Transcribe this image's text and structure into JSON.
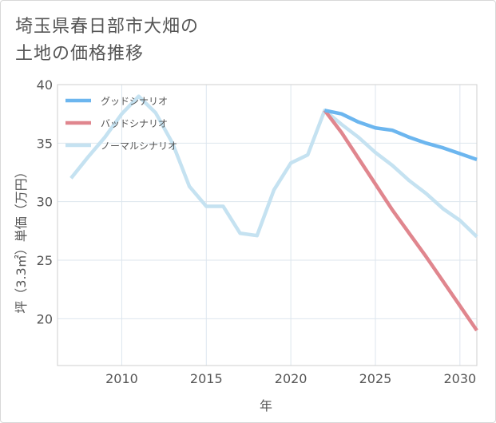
{
  "title_lines": [
    "埼玉県春日部市大畑の",
    "土地の価格推移"
  ],
  "chart_data": {
    "type": "line",
    "xlabel": "年",
    "ylabel": "坪（3.3㎡）単価（万円）",
    "xlim": [
      2006.2,
      2031
    ],
    "ylim": [
      16,
      40
    ],
    "x_ticks": [
      2010,
      2015,
      2020,
      2025,
      2030
    ],
    "y_ticks": [
      20,
      25,
      30,
      35,
      40
    ],
    "grid": true,
    "legend_position": "top-left",
    "series": [
      {
        "name": "グッドシナリオ",
        "color": "#6cb6ef",
        "dashed": false,
        "x": [
          2022,
          2023,
          2024,
          2025,
          2026,
          2027,
          2028,
          2029,
          2030,
          2031
        ],
        "y": [
          37.8,
          37.5,
          36.8,
          36.3,
          36.1,
          35.5,
          35.0,
          34.6,
          34.1,
          33.6
        ]
      },
      {
        "name": "バッドシナリオ",
        "color": "#e0868e",
        "dashed": false,
        "x": [
          2022,
          2023,
          2024,
          2025,
          2026,
          2027,
          2028,
          2029,
          2030,
          2031
        ],
        "y": [
          37.8,
          35.9,
          33.7,
          31.5,
          29.3,
          27.3,
          25.3,
          23.2,
          21.1,
          19.0
        ]
      },
      {
        "name": "ノーマルシナリオ",
        "color": "#c5e2f1",
        "dashed": false,
        "x": [
          2007,
          2008,
          2009,
          2010,
          2011,
          2012,
          2013,
          2014,
          2015,
          2016,
          2017,
          2018,
          2019,
          2020,
          2021,
          2022,
          2023,
          2024,
          2025,
          2026,
          2027,
          2028,
          2029,
          2030,
          2031
        ],
        "y": [
          32.0,
          33.8,
          35.5,
          37.5,
          39.0,
          37.6,
          35.0,
          31.3,
          29.6,
          29.6,
          27.3,
          27.1,
          31.0,
          33.3,
          34.0,
          37.8,
          36.6,
          35.5,
          34.2,
          33.1,
          31.8,
          30.7,
          29.4,
          28.4,
          27.0
        ]
      }
    ]
  }
}
